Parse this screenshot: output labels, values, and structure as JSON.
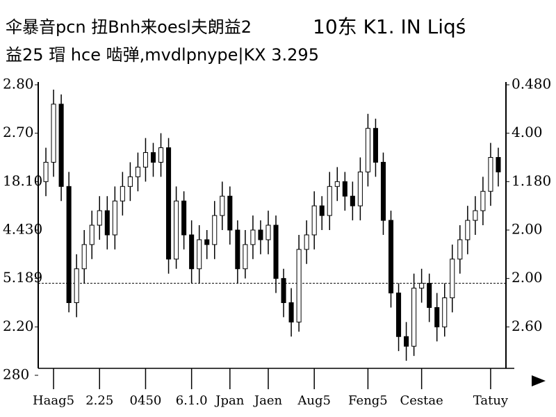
{
  "chart_data": {
    "type": "candlestick",
    "title": "伞暴音pcn 扭Bnh来oesl夫朗益2",
    "title_right": "10东 K1. IN Liqś",
    "subtitle": "益25 瑁 hce 啮弹,mvdlpnype|KX 3.295",
    "x": [
      1,
      2,
      3,
      4,
      5,
      6,
      7,
      8,
      9,
      10,
      11,
      12,
      13,
      14,
      15,
      16,
      17,
      18,
      19,
      20,
      21,
      22,
      23,
      24,
      25,
      26,
      27,
      28,
      29,
      30,
      31,
      32,
      33,
      34,
      35,
      36,
      37,
      38,
      39,
      40,
      41,
      42,
      43,
      44,
      45,
      46,
      47,
      48,
      49,
      50,
      51,
      52,
      53,
      54,
      55,
      56,
      57,
      58,
      59,
      60
    ],
    "open": [
      4.0,
      4.4,
      5.6,
      3.9,
      1.5,
      2.2,
      2.7,
      3.1,
      3.4,
      2.9,
      3.6,
      3.9,
      4.1,
      4.3,
      4.6,
      4.4,
      4.7,
      2.4,
      3.6,
      2.9,
      2.2,
      2.8,
      2.7,
      3.3,
      3.7,
      3.0,
      2.2,
      2.7,
      3.0,
      2.8,
      3.1,
      2.0,
      1.5,
      1.1,
      2.6,
      2.9,
      3.5,
      3.3,
      3.9,
      4.0,
      3.7,
      3.5,
      4.2,
      5.1,
      4.4,
      3.2,
      1.7,
      0.8,
      0.6,
      1.8,
      1.9,
      1.4,
      1.0,
      1.6,
      2.4,
      2.8,
      3.2,
      3.4,
      3.8,
      4.5
    ],
    "high": [
      4.7,
      5.9,
      5.8,
      4.2,
      2.5,
      3.0,
      3.4,
      3.7,
      3.7,
      3.9,
      4.2,
      4.4,
      4.6,
      4.9,
      4.8,
      5.0,
      4.9,
      3.9,
      3.8,
      3.2,
      3.1,
      3.0,
      3.6,
      4.0,
      3.9,
      3.2,
      3.0,
      3.3,
      3.2,
      3.4,
      3.3,
      2.2,
      1.8,
      2.9,
      3.2,
      3.8,
      3.7,
      4.2,
      4.3,
      4.2,
      4.0,
      4.5,
      5.4,
      5.3,
      4.6,
      3.4,
      1.9,
      1.1,
      2.1,
      2.2,
      2.1,
      1.7,
      1.9,
      2.7,
      3.1,
      3.5,
      3.7,
      4.1,
      4.8,
      4.7
    ],
    "low": [
      3.7,
      4.1,
      3.6,
      1.3,
      1.2,
      1.9,
      2.4,
      2.8,
      2.6,
      2.6,
      3.3,
      3.6,
      3.8,
      4.0,
      4.1,
      4.1,
      2.1,
      2.2,
      2.6,
      1.9,
      1.9,
      2.4,
      2.4,
      3.0,
      2.7,
      1.9,
      2.0,
      2.4,
      2.5,
      2.5,
      1.7,
      1.2,
      0.8,
      0.9,
      2.3,
      2.6,
      3.0,
      3.0,
      3.6,
      3.4,
      3.2,
      3.2,
      3.9,
      4.1,
      2.9,
      1.4,
      0.5,
      0.3,
      0.4,
      1.5,
      1.1,
      0.7,
      0.8,
      1.3,
      2.1,
      2.5,
      2.9,
      3.1,
      3.5,
      3.9
    ],
    "close": [
      4.4,
      5.6,
      3.9,
      1.5,
      2.2,
      2.7,
      3.1,
      3.4,
      2.9,
      3.6,
      3.9,
      4.1,
      4.3,
      4.6,
      4.4,
      4.7,
      2.4,
      3.6,
      2.9,
      2.2,
      2.8,
      2.7,
      3.3,
      3.7,
      3.0,
      2.2,
      2.7,
      3.0,
      2.8,
      3.1,
      2.0,
      1.5,
      1.1,
      2.6,
      2.9,
      3.5,
      3.3,
      3.9,
      4.0,
      3.7,
      3.5,
      4.2,
      5.1,
      4.4,
      3.2,
      1.7,
      0.8,
      0.6,
      1.8,
      1.9,
      1.4,
      1.0,
      1.6,
      2.4,
      2.8,
      3.2,
      3.4,
      3.8,
      4.5,
      4.2
    ],
    "up_color": "#ffffff",
    "down_color": "#000000",
    "edge_color": "#000000",
    "xlim": [
      0,
      61
    ],
    "xticks": [
      {
        "value": 2,
        "label": "Haag5"
      },
      {
        "value": 8,
        "label": "2.25"
      },
      {
        "value": 14,
        "label": "0450"
      },
      {
        "value": 20,
        "label": "6.1.0"
      },
      {
        "value": 25,
        "label": "Jpan"
      },
      {
        "value": 30,
        "label": "Jaen"
      },
      {
        "value": 36,
        "label": "Aug5"
      },
      {
        "value": 43,
        "label": "Feng5"
      },
      {
        "value": 50,
        "label": "Cestae"
      },
      {
        "value": 59,
        "label": "Tatuy"
      }
    ],
    "ylim": [
      0,
      6
    ],
    "yticks": [
      {
        "value": 6,
        "label": "2.80"
      },
      {
        "value": 5,
        "label": "2.70"
      },
      {
        "value": 4,
        "label": "18.10"
      },
      {
        "value": 3,
        "label": "4.430"
      },
      {
        "value": 2,
        "label": "5.189"
      },
      {
        "value": 1,
        "label": "2.20"
      },
      {
        "value": 0,
        "label": "280"
      }
    ],
    "y2lim": [
      0,
      6
    ],
    "y2ticks": [
      {
        "value": 6,
        "label": "0.480"
      },
      {
        "value": 5,
        "label": "4.00"
      },
      {
        "value": 4,
        "label": "1.180"
      },
      {
        "value": 3,
        "label": "2.00"
      },
      {
        "value": 2,
        "label": "2.00"
      },
      {
        "value": 1,
        "label": "2.60"
      }
    ],
    "reference_line": 1.9
  }
}
